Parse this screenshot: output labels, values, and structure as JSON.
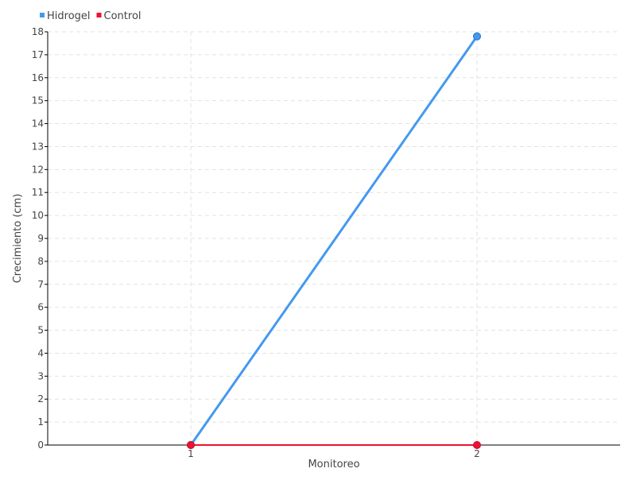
{
  "chart_data": {
    "type": "line",
    "title": "",
    "xlabel": "Monitoreo",
    "ylabel": "Crecimiento (cm)",
    "categories": [
      "1",
      "2"
    ],
    "x": [
      1,
      2
    ],
    "xlim": [
      0.5,
      2.5
    ],
    "ylim": [
      0,
      18
    ],
    "yticks": [
      0,
      1,
      2,
      3,
      4,
      5,
      6,
      7,
      8,
      9,
      10,
      11,
      12,
      13,
      14,
      15,
      16,
      17,
      18
    ],
    "grid": true,
    "legend": "top-left",
    "series": [
      {
        "name": "Hidrogel",
        "values": [
          0,
          17.8
        ],
        "color": "#4499ee"
      },
      {
        "name": "Control",
        "values": [
          0,
          0
        ],
        "color": "#ee1133"
      }
    ]
  }
}
